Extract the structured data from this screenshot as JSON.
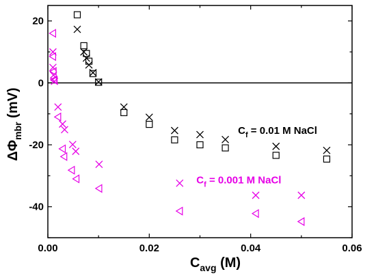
{
  "chart_data": {
    "type": "scatter",
    "xlabel": {
      "main": "C",
      "sub": "avg",
      "unit": " (M)"
    },
    "ylabel": {
      "main": "ΔΦ",
      "sub": "mbr",
      "unit": " (mV)"
    },
    "xlim": [
      0,
      0.06
    ],
    "ylim": [
      -50,
      25
    ],
    "xticks": [
      0,
      0.02,
      0.04,
      0.06
    ],
    "xtick_labels": [
      "0.00",
      "0.02",
      "0.04",
      "0.06"
    ],
    "yticks": [
      -40,
      -20,
      0,
      20
    ],
    "ytick_labels": [
      "-40",
      "-20",
      "0",
      "20"
    ],
    "zero_line": 0,
    "grid": false,
    "annotations": [
      {
        "id": "black",
        "prefix": "C",
        "sub": "f",
        "rest": " = 0.01 M NaCl",
        "color": "#000000",
        "x": 0.0375,
        "y": -16.5
      },
      {
        "id": "magenta",
        "prefix": "C",
        "sub": "f",
        "rest": " = 0.001 M NaCl",
        "color": "#e600e6",
        "x": 0.0293,
        "y": -32.5
      }
    ],
    "series": [
      {
        "marker": "square",
        "color": "#000000",
        "x": [
          0.0058,
          0.0071,
          0.0076,
          0.0081,
          0.0089,
          0.01,
          0.015,
          0.02,
          0.025,
          0.03,
          0.035,
          0.045,
          0.055
        ],
        "y": [
          22.0,
          12.0,
          9.5,
          7.0,
          3.0,
          0.2,
          -9.6,
          -13.4,
          -18.4,
          -20.0,
          -21.0,
          -23.4,
          -24.6
        ]
      },
      {
        "marker": "cross",
        "color": "#000000",
        "x": [
          0.0058,
          0.0071,
          0.0076,
          0.0081,
          0.0089,
          0.01,
          0.015,
          0.02,
          0.025,
          0.03,
          0.035,
          0.045,
          0.055
        ],
        "y": [
          17.3,
          10.0,
          8.0,
          5.8,
          3.3,
          0.3,
          -7.8,
          -11.1,
          -15.4,
          -16.7,
          -18.3,
          -20.5,
          -21.8
        ]
      },
      {
        "marker": "cross",
        "color": "#e600e6",
        "x": [
          0.001,
          0.001,
          0.0011,
          0.0013,
          0.002,
          0.0029,
          0.0033,
          0.0049,
          0.0055,
          0.0101,
          0.026,
          0.041,
          0.05
        ],
        "y": [
          10.0,
          5.0,
          2.5,
          0.5,
          -7.8,
          -13.3,
          -15.1,
          -19.9,
          -22.1,
          -26.3,
          -32.4,
          -36.3,
          -36.3
        ]
      },
      {
        "marker": "triangle-left",
        "color": "#e600e6",
        "x": [
          0.001,
          0.001,
          0.0011,
          0.0012,
          0.0013,
          0.002,
          0.0029,
          0.0032,
          0.0047,
          0.0056,
          0.0101,
          0.026,
          0.041,
          0.05
        ],
        "y": [
          16.0,
          8.5,
          3.7,
          1.0,
          0.8,
          -11.0,
          -21.3,
          -23.8,
          -28.2,
          -31.0,
          -34.1,
          -41.4,
          -42.2,
          -44.8
        ]
      }
    ]
  }
}
